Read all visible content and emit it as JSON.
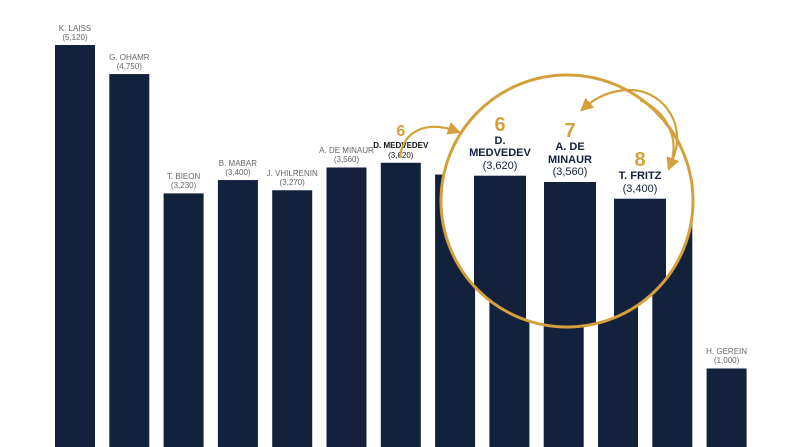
{
  "chart_data": {
    "type": "bar",
    "categories": [
      "K. LAISS",
      "G. OHAMR",
      "T. BIEON",
      "B. MABAR",
      "J. VHILRENIN",
      "A. DE MINAUR",
      "D. MEDVEDEV",
      null,
      null,
      null,
      null,
      null,
      "H. GEREIN"
    ],
    "values": [
      5120,
      4750,
      3230,
      3400,
      3270,
      3560,
      3620,
      3470,
      3560,
      3560,
      3400,
      3000,
      1000
    ],
    "value_labels": [
      "(5,120)",
      "(4,750)",
      "(3,230)",
      "(3,400)",
      "(3,270)",
      "(3,560)",
      "(3,620)",
      null,
      null,
      null,
      null,
      null,
      "(1,000)"
    ],
    "ranks": [
      null,
      null,
      null,
      null,
      null,
      null,
      6,
      null,
      null,
      null,
      null,
      null,
      null
    ],
    "color": "#14213d",
    "highlight_color": "#d4a03c",
    "inset": {
      "type": "bar",
      "categories": [
        "D. MEDVEDEV",
        "A. DE MINAUR",
        "T. FRITZ"
      ],
      "values": [
        3620,
        3560,
        3400
      ],
      "value_labels": [
        "(3,620)",
        "(3,560)",
        "(3,400)"
      ],
      "ranks": [
        6,
        7,
        8
      ]
    }
  }
}
